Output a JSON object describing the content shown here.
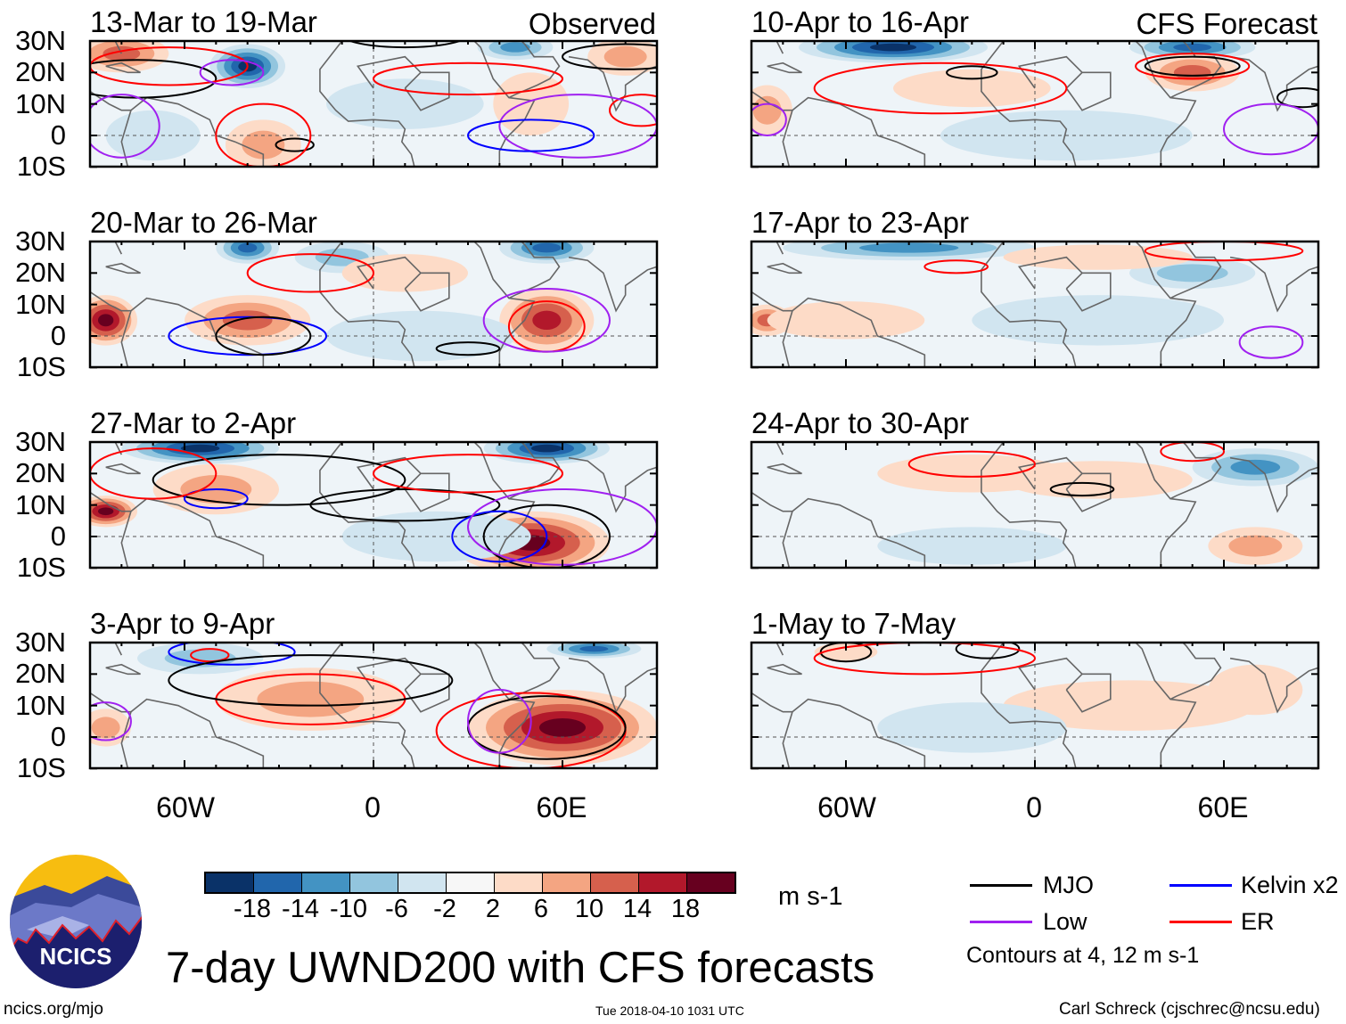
{
  "header": {
    "observed_label": "Observed",
    "forecast_label": "CFS Forecast"
  },
  "axes": {
    "lat_labels": [
      "30N",
      "20N",
      "10N",
      "0",
      "10S"
    ],
    "lon_labels": [
      "60W",
      "0",
      "60E"
    ]
  },
  "colorbar": {
    "colors": [
      "#0a3268",
      "#2166ac",
      "#4393c3",
      "#92c5de",
      "#d1e5f0",
      "#f7f7f7",
      "#fddbc7",
      "#f4a582",
      "#d6604d",
      "#b2182b",
      "#67001f"
    ],
    "labels": [
      "-18",
      "-14",
      "-10",
      "-6",
      "-2",
      "2",
      "6",
      "10",
      "14",
      "18"
    ],
    "units": "m s-1"
  },
  "legend": {
    "items": [
      {
        "label": "MJO",
        "color": "#000000"
      },
      {
        "label": "Kelvin x2",
        "color": "#0000ff"
      },
      {
        "label": "Low",
        "color": "#a020f0"
      },
      {
        "label": "ER",
        "color": "#ff0000"
      }
    ],
    "contour_note": "Contours at 4, 12 m s-1"
  },
  "footer": {
    "title": "7-day UWND200 with CFS forecasts",
    "logo_text": "NCICS",
    "url": "ncics.org/mjo",
    "timestamp": "Tue 2018-04-10 1031 UTC",
    "author": "Carl Schreck (cjschrec@ncsu.edu)"
  },
  "chart_data": {
    "type": "heatmap",
    "variable": "200-hPa zonal wind anomaly",
    "units": "m s-1",
    "lon_range": [
      -90,
      90
    ],
    "lat_range": [
      -10,
      30
    ],
    "panels": [
      {
        "title": "13-Mar to 19-Mar",
        "source": "Observed",
        "anomalies": [
          [
            -40,
            22,
            12,
            7,
            -22
          ],
          [
            -80,
            26,
            15,
            6,
            12
          ],
          [
            -35,
            -3,
            12,
            8,
            10
          ],
          [
            45,
            28,
            12,
            4,
            -12
          ],
          [
            80,
            25,
            12,
            6,
            8
          ],
          [
            10,
            10,
            25,
            8,
            -5
          ],
          [
            -70,
            0,
            15,
            8,
            -5
          ],
          [
            50,
            10,
            12,
            10,
            4
          ]
        ],
        "contours": [
          [
            "MJO",
            -75,
            18,
            25,
            6
          ],
          [
            "MJO",
            -25,
            -3,
            6,
            2
          ],
          [
            "MJO",
            10,
            32,
            20,
            4
          ],
          [
            "MJO",
            80,
            25,
            20,
            4
          ],
          [
            "ER",
            -65,
            22,
            25,
            6
          ],
          [
            "ER",
            -35,
            0,
            15,
            10
          ],
          [
            "ER",
            30,
            18,
            30,
            5
          ],
          [
            "ER",
            85,
            8,
            10,
            5
          ],
          [
            "Low",
            -45,
            20,
            10,
            4
          ],
          [
            "Low",
            -80,
            3,
            12,
            10
          ],
          [
            "Low",
            65,
            3,
            25,
            10
          ],
          [
            "Kelvin",
            50,
            0,
            20,
            5
          ]
        ]
      },
      {
        "title": "20-Mar to 26-Mar",
        "source": "Observed",
        "anomalies": [
          [
            -85,
            5,
            10,
            8,
            19
          ],
          [
            -40,
            5,
            20,
            8,
            12
          ],
          [
            -40,
            28,
            10,
            5,
            -14
          ],
          [
            55,
            28,
            15,
            5,
            -16
          ],
          [
            55,
            5,
            15,
            10,
            16
          ],
          [
            -10,
            25,
            15,
            5,
            -8
          ],
          [
            10,
            20,
            20,
            6,
            5
          ],
          [
            15,
            0,
            30,
            8,
            -4
          ]
        ],
        "contours": [
          [
            "Kelvin",
            -40,
            0,
            25,
            6
          ],
          [
            "MJO",
            -35,
            0,
            15,
            6
          ],
          [
            "MJO",
            30,
            -4,
            10,
            2
          ],
          [
            "ER",
            -20,
            20,
            20,
            6
          ],
          [
            "ER",
            55,
            3,
            12,
            8
          ],
          [
            "Low",
            55,
            5,
            20,
            10
          ]
        ]
      },
      {
        "title": "27-Mar to 2-Apr",
        "source": "Observed",
        "anomalies": [
          [
            -55,
            28,
            25,
            5,
            -20
          ],
          [
            55,
            28,
            20,
            5,
            -20
          ],
          [
            -85,
            8,
            10,
            5,
            20
          ],
          [
            50,
            -2,
            25,
            10,
            20
          ],
          [
            -50,
            15,
            20,
            8,
            8
          ],
          [
            20,
            0,
            30,
            8,
            -5
          ]
        ],
        "contours": [
          [
            "MJO",
            -30,
            18,
            40,
            8
          ],
          [
            "MJO",
            55,
            0,
            20,
            10
          ],
          [
            "MJO",
            10,
            10,
            30,
            5
          ],
          [
            "Kelvin",
            -50,
            12,
            10,
            3
          ],
          [
            "Kelvin",
            40,
            0,
            15,
            8
          ],
          [
            "Low",
            60,
            3,
            30,
            12
          ],
          [
            "ER",
            -70,
            20,
            20,
            8
          ],
          [
            "ER",
            30,
            20,
            30,
            6
          ]
        ]
      },
      {
        "title": "3-Apr to 9-Apr",
        "source": "Observed",
        "anomalies": [
          [
            60,
            3,
            30,
            12,
            20
          ],
          [
            -20,
            12,
            30,
            10,
            10
          ],
          [
            -55,
            25,
            20,
            5,
            -6
          ],
          [
            70,
            28,
            15,
            3,
            -14
          ],
          [
            -85,
            3,
            8,
            6,
            8
          ]
        ],
        "contours": [
          [
            "Kelvin",
            -45,
            27,
            20,
            4
          ],
          [
            "ER",
            -52,
            26,
            6,
            2
          ],
          [
            "ER",
            -20,
            12,
            30,
            8
          ],
          [
            "ER",
            50,
            2,
            30,
            12
          ],
          [
            "MJO",
            -20,
            18,
            45,
            8
          ],
          [
            "MJO",
            55,
            3,
            25,
            10
          ],
          [
            "Low",
            -85,
            5,
            8,
            6
          ],
          [
            "Low",
            40,
            5,
            10,
            10
          ]
        ]
      },
      {
        "title": "10-Apr to 16-Apr",
        "source": "CFS Forecast",
        "anomalies": [
          [
            -45,
            28,
            30,
            5,
            -18
          ],
          [
            50,
            28,
            20,
            4,
            -14
          ],
          [
            50,
            20,
            15,
            6,
            12
          ],
          [
            -85,
            8,
            8,
            8,
            8
          ],
          [
            -20,
            15,
            25,
            6,
            4
          ],
          [
            10,
            0,
            40,
            8,
            -3
          ]
        ],
        "contours": [
          [
            "ER",
            50,
            22,
            18,
            4
          ],
          [
            "ER",
            -30,
            15,
            40,
            8
          ],
          [
            "MJO",
            50,
            22,
            15,
            3
          ],
          [
            "MJO",
            -20,
            20,
            8,
            2
          ],
          [
            "MJO",
            85,
            12,
            8,
            3
          ],
          [
            "Low",
            75,
            2,
            15,
            8
          ],
          [
            "Low",
            -85,
            5,
            6,
            5
          ]
        ]
      },
      {
        "title": "17-Apr to 23-Apr",
        "source": "CFS Forecast",
        "anomalies": [
          [
            -40,
            28,
            40,
            4,
            -10
          ],
          [
            50,
            20,
            20,
            5,
            -8
          ],
          [
            -85,
            5,
            8,
            5,
            12
          ],
          [
            -60,
            5,
            25,
            6,
            5
          ],
          [
            20,
            25,
            30,
            4,
            4
          ],
          [
            20,
            5,
            40,
            8,
            -3
          ]
        ],
        "contours": [
          [
            "ER",
            -25,
            22,
            10,
            2
          ],
          [
            "ER",
            60,
            27,
            25,
            3
          ],
          [
            "Low",
            75,
            -2,
            10,
            5
          ]
        ]
      },
      {
        "title": "24-Apr to 30-Apr",
        "source": "CFS Forecast",
        "anomalies": [
          [
            70,
            22,
            20,
            6,
            -10
          ],
          [
            -20,
            20,
            30,
            6,
            5
          ],
          [
            20,
            18,
            30,
            6,
            5
          ],
          [
            70,
            -3,
            15,
            6,
            8
          ],
          [
            -20,
            -3,
            30,
            6,
            -3
          ]
        ],
        "contours": [
          [
            "ER",
            -20,
            23,
            20,
            4
          ],
          [
            "ER",
            50,
            27,
            10,
            3
          ],
          [
            "MJO",
            15,
            15,
            10,
            2
          ]
        ]
      },
      {
        "title": "1-May to 7-May",
        "source": "CFS Forecast",
        "anomalies": [
          [
            30,
            10,
            40,
            8,
            4
          ],
          [
            -20,
            3,
            30,
            8,
            -3
          ],
          [
            70,
            15,
            15,
            8,
            5
          ],
          [
            -60,
            27,
            10,
            3,
            6
          ]
        ],
        "contours": [
          [
            "MJO",
            -60,
            27,
            8,
            3
          ],
          [
            "MJO",
            -15,
            28,
            10,
            3
          ],
          [
            "ER",
            -35,
            25,
            35,
            5
          ]
        ]
      }
    ]
  }
}
